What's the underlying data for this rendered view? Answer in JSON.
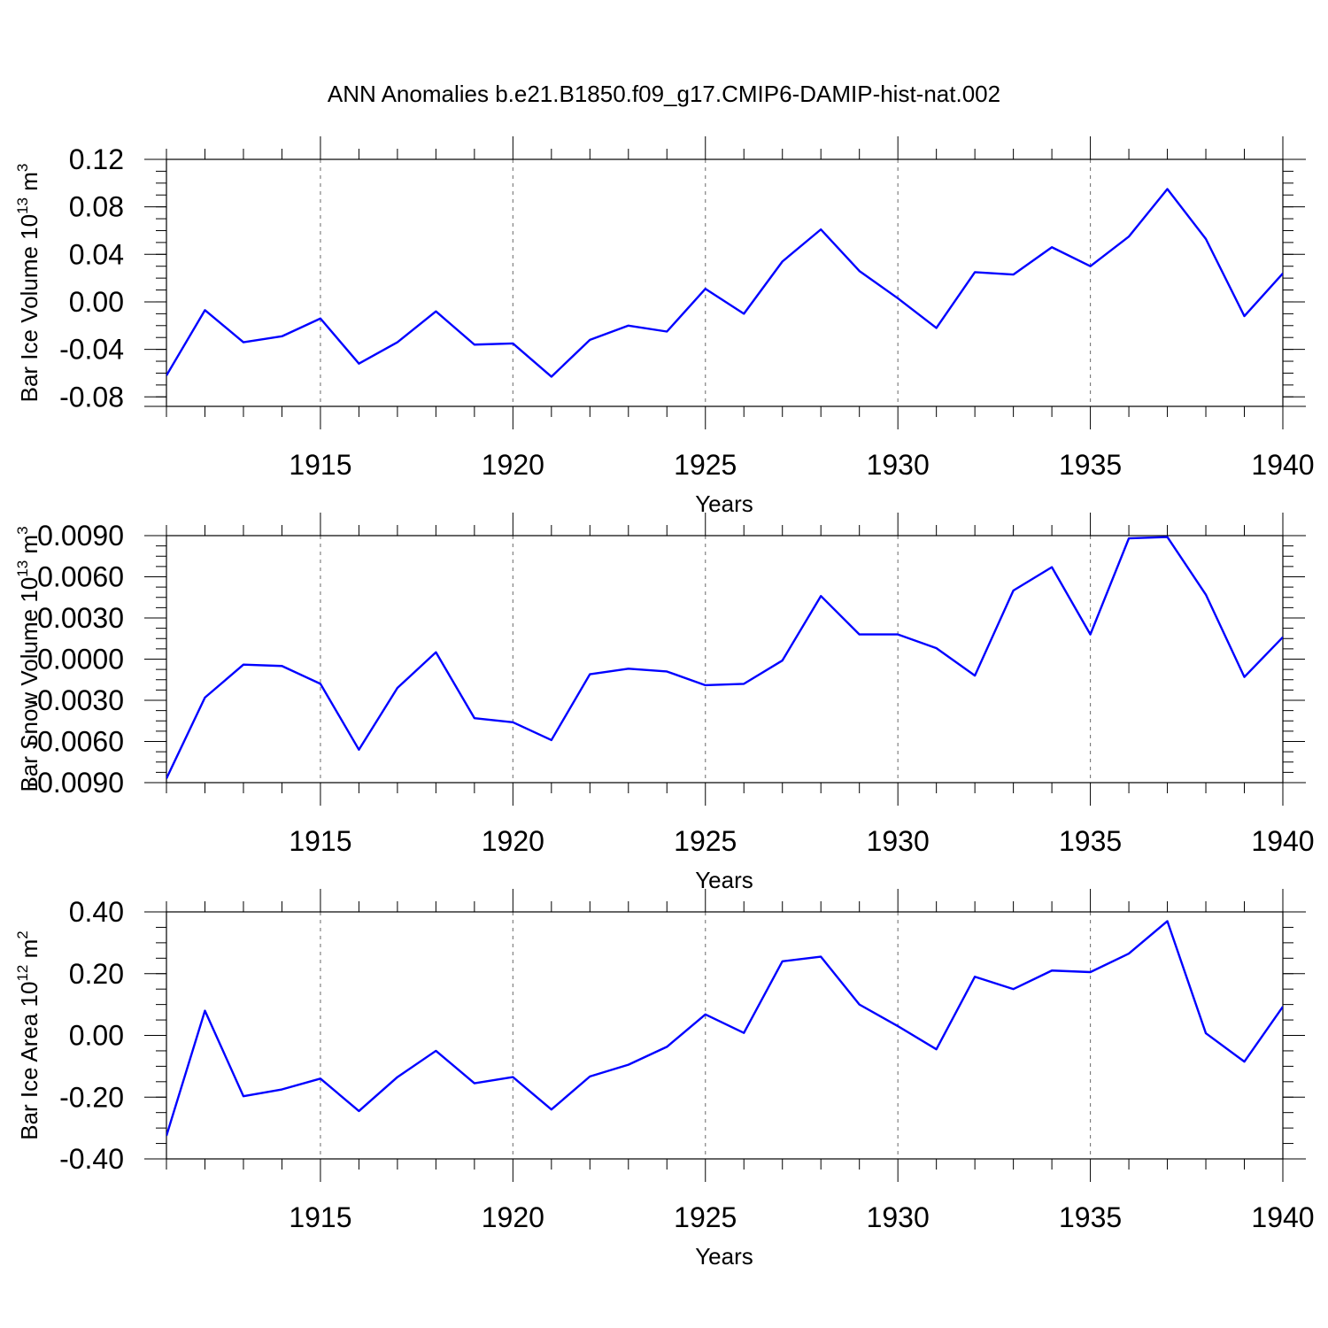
{
  "title": "ANN Anomalies b.e21.B1850.f09_g17.CMIP6-DAMIP-hist-nat.002",
  "colors": {
    "line": "#0000ff",
    "frame": "#000000",
    "grid": "#777777"
  },
  "chart_data": [
    {
      "type": "line",
      "xlabel": "Years",
      "ylabel": {
        "main": "Bar Ice Volume 10",
        "exp": "13",
        "unit": " m",
        "unit_exp": "3"
      },
      "xlim": [
        1911,
        1940
      ],
      "ylim": [
        -0.088,
        0.12
      ],
      "xticks": [
        "1915",
        "1920",
        "1925",
        "1930",
        "1935",
        "1940"
      ],
      "yticks": [
        {
          "value": 0.12,
          "label": "0.12"
        },
        {
          "value": 0.08,
          "label": "0.08"
        },
        {
          "value": 0.04,
          "label": "0.04"
        },
        {
          "value": 0.0,
          "label": "0.00"
        },
        {
          "value": -0.04,
          "label": "-0.04"
        },
        {
          "value": -0.08,
          "label": "-0.08"
        }
      ],
      "grid": "dashed vertical at 1915, 1920, 1925, 1930, 1935",
      "x": [
        1911,
        1912,
        1913,
        1914,
        1915,
        1916,
        1917,
        1918,
        1919,
        1920,
        1921,
        1922,
        1923,
        1924,
        1925,
        1926,
        1927,
        1928,
        1929,
        1930,
        1931,
        1932,
        1933,
        1934,
        1935,
        1936,
        1937,
        1938,
        1939,
        1940
      ],
      "values": [
        -0.062,
        -0.007,
        -0.034,
        -0.029,
        -0.014,
        -0.052,
        -0.034,
        -0.008,
        -0.036,
        -0.035,
        -0.063,
        -0.032,
        -0.02,
        -0.025,
        0.011,
        -0.01,
        0.034,
        0.061,
        0.026,
        0.003,
        -0.022,
        0.025,
        0.023,
        0.046,
        0.03,
        0.055,
        0.095,
        0.053,
        -0.012,
        0.024
      ]
    },
    {
      "type": "line",
      "xlabel": "Years",
      "ylabel": {
        "main": "Bar Snow Volume 10",
        "exp": "13",
        "unit": " m",
        "unit_exp": "3"
      },
      "xlim": [
        1911,
        1940
      ],
      "ylim": [
        -0.009,
        0.009
      ],
      "xticks": [
        "1915",
        "1920",
        "1925",
        "1930",
        "1935",
        "1940"
      ],
      "yticks": [
        {
          "value": 0.009,
          "label": "0.0090"
        },
        {
          "value": 0.006,
          "label": "0.0060"
        },
        {
          "value": 0.003,
          "label": "0.0030"
        },
        {
          "value": 0.0,
          "label": "0.0000"
        },
        {
          "value": -0.003,
          "label": "-0.0030"
        },
        {
          "value": -0.006,
          "label": "-0.0060"
        },
        {
          "value": -0.009,
          "label": "-0.0090"
        }
      ],
      "grid": "dashed vertical at 1915, 1920, 1925, 1930, 1935",
      "x": [
        1911,
        1912,
        1913,
        1914,
        1915,
        1916,
        1917,
        1918,
        1919,
        1920,
        1921,
        1922,
        1923,
        1924,
        1925,
        1926,
        1927,
        1928,
        1929,
        1930,
        1931,
        1932,
        1933,
        1934,
        1935,
        1936,
        1937,
        1938,
        1939,
        1940
      ],
      "values": [
        -0.0087,
        -0.0028,
        -0.0004,
        -0.0005,
        -0.0018,
        -0.0066,
        -0.0021,
        0.0005,
        -0.0043,
        -0.0046,
        -0.0059,
        -0.0011,
        -0.0007,
        -0.0009,
        -0.0019,
        -0.0018,
        -0.0001,
        0.0046,
        0.0018,
        0.0018,
        0.0008,
        -0.0012,
        0.005,
        0.0067,
        0.0018,
        0.0088,
        0.0089,
        0.0047,
        -0.0013,
        0.0016
      ]
    },
    {
      "type": "line",
      "xlabel": "Years",
      "ylabel": {
        "main": "Bar Ice Area 10",
        "exp": "12",
        "unit": " m",
        "unit_exp": "2"
      },
      "xlim": [
        1911,
        1940
      ],
      "ylim": [
        -0.4,
        0.4
      ],
      "xticks": [
        "1915",
        "1920",
        "1925",
        "1930",
        "1935",
        "1940"
      ],
      "yticks": [
        {
          "value": 0.4,
          "label": "0.40"
        },
        {
          "value": 0.2,
          "label": "0.20"
        },
        {
          "value": 0.0,
          "label": "0.00"
        },
        {
          "value": -0.2,
          "label": "-0.20"
        },
        {
          "value": -0.4,
          "label": "-0.40"
        }
      ],
      "grid": "dashed vertical at 1915, 1920, 1925, 1930, 1935",
      "x": [
        1911,
        1912,
        1913,
        1914,
        1915,
        1916,
        1917,
        1918,
        1919,
        1920,
        1921,
        1922,
        1923,
        1924,
        1925,
        1926,
        1927,
        1928,
        1929,
        1930,
        1931,
        1932,
        1933,
        1934,
        1935,
        1936,
        1937,
        1938,
        1939,
        1940
      ],
      "values": [
        -0.325,
        0.08,
        -0.197,
        -0.175,
        -0.14,
        -0.245,
        -0.135,
        -0.05,
        -0.155,
        -0.135,
        -0.24,
        -0.133,
        -0.095,
        -0.037,
        0.068,
        0.008,
        0.24,
        0.255,
        0.1,
        0.03,
        -0.045,
        0.19,
        0.15,
        0.21,
        0.205,
        0.265,
        0.37,
        0.007,
        -0.085,
        0.093
      ]
    }
  ]
}
